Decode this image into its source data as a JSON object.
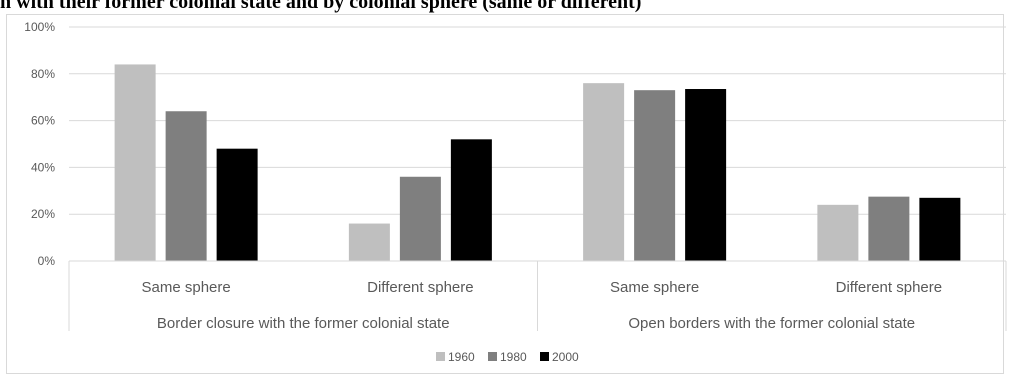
{
  "caption": "n with their former colonial state and by colonial sphere (same or different)",
  "colors": {
    "1960": "#bfbfbf",
    "1980": "#7f7f7f",
    "2000": "#000000",
    "grid": "#d9d9d9",
    "text": "#595959"
  },
  "chart_data": {
    "type": "bar",
    "title": "",
    "xlabel": "",
    "ylabel": "",
    "ylim": [
      0,
      100
    ],
    "yticks": [
      "0%",
      "20%",
      "40%",
      "60%",
      "80%",
      "100%"
    ],
    "grid": true,
    "legend_position": "bottom",
    "categories": [
      "Same sphere",
      "Different sphere",
      "Same sphere",
      "Different sphere"
    ],
    "groups": [
      {
        "label": "Border closure with the former colonial state",
        "categories": [
          "Same sphere",
          "Different sphere"
        ]
      },
      {
        "label": "Open borders with the former colonial state",
        "categories": [
          "Same sphere",
          "Different sphere"
        ]
      }
    ],
    "series": [
      {
        "name": "1960",
        "values": [
          84,
          16,
          76,
          24
        ]
      },
      {
        "name": "1980",
        "values": [
          64,
          36,
          73,
          27.5
        ]
      },
      {
        "name": "2000",
        "values": [
          48,
          52,
          73.5,
          27
        ]
      }
    ]
  }
}
